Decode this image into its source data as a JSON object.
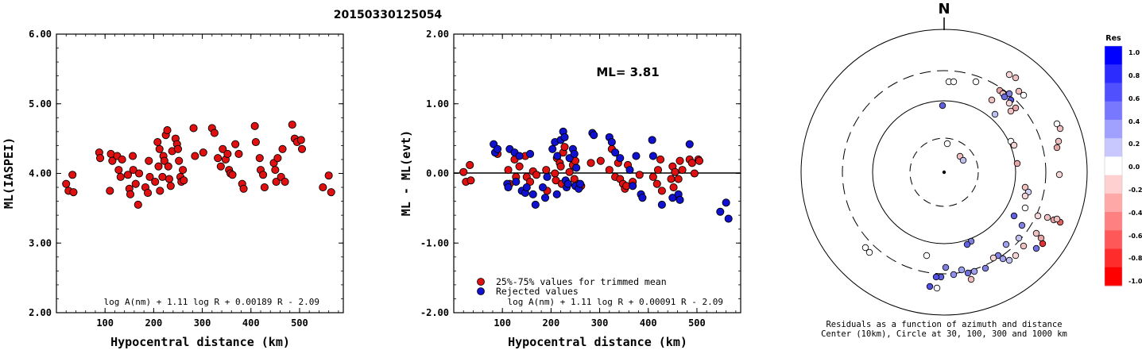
{
  "event_id": "20150330125054",
  "chart_data": [
    {
      "type": "scatter",
      "xlabel": "Hypocentral distance (km)",
      "ylabel": "ML(IASPEI)",
      "xlim": [
        0,
        590
      ],
      "ylim": [
        2.0,
        6.0
      ],
      "x_ticks": [
        "100",
        "200",
        "300",
        "400",
        "500"
      ],
      "y_ticks": [
        "2.00",
        "3.00",
        "4.00",
        "5.00",
        "6.00"
      ],
      "formula": "log A(nm) + 1.11 log R + 0.00189 R - 2.09",
      "series": [
        {
          "color": "#e01010",
          "points": [
            [
              20,
              3.85
            ],
            [
              25,
              3.75
            ],
            [
              33,
              3.98
            ],
            [
              35,
              3.73
            ],
            [
              88,
              4.3
            ],
            [
              90,
              4.22
            ],
            [
              110,
              3.75
            ],
            [
              112,
              4.28
            ],
            [
              115,
              4.18
            ],
            [
              125,
              4.25
            ],
            [
              128,
              4.05
            ],
            [
              132,
              3.95
            ],
            [
              135,
              4.2
            ],
            [
              147,
              3.98
            ],
            [
              150,
              3.78
            ],
            [
              152,
              3.7
            ],
            [
              157,
              4.25
            ],
            [
              158,
              4.05
            ],
            [
              163,
              3.85
            ],
            [
              168,
              3.55
            ],
            [
              170,
              4.0
            ],
            [
              183,
              3.8
            ],
            [
              188,
              3.72
            ],
            [
              190,
              4.18
            ],
            [
              192,
              3.95
            ],
            [
              203,
              3.88
            ],
            [
              208,
              4.45
            ],
            [
              210,
              4.1
            ],
            [
              212,
              4.35
            ],
            [
              213,
              3.75
            ],
            [
              218,
              3.95
            ],
            [
              220,
              4.25
            ],
            [
              222,
              4.18
            ],
            [
              225,
              4.55
            ],
            [
              228,
              4.62
            ],
            [
              230,
              4.1
            ],
            [
              232,
              3.92
            ],
            [
              235,
              3.82
            ],
            [
              238,
              4.32
            ],
            [
              245,
              4.5
            ],
            [
              248,
              4.42
            ],
            [
              250,
              4.35
            ],
            [
              252,
              4.18
            ],
            [
              255,
              3.95
            ],
            [
              257,
              3.88
            ],
            [
              260,
              4.05
            ],
            [
              262,
              3.9
            ],
            [
              282,
              4.65
            ],
            [
              285,
              4.25
            ],
            [
              302,
              4.3
            ],
            [
              320,
              4.65
            ],
            [
              325,
              4.58
            ],
            [
              332,
              4.22
            ],
            [
              338,
              4.1
            ],
            [
              342,
              4.35
            ],
            [
              348,
              4.2
            ],
            [
              352,
              4.28
            ],
            [
              355,
              4.05
            ],
            [
              358,
              4.0
            ],
            [
              362,
              3.98
            ],
            [
              368,
              4.42
            ],
            [
              375,
              4.28
            ],
            [
              382,
              3.85
            ],
            [
              385,
              3.78
            ],
            [
              408,
              4.68
            ],
            [
              410,
              4.45
            ],
            [
              418,
              4.22
            ],
            [
              420,
              4.05
            ],
            [
              425,
              3.98
            ],
            [
              428,
              3.8
            ],
            [
              447,
              4.15
            ],
            [
              450,
              4.05
            ],
            [
              452,
              3.88
            ],
            [
              455,
              4.22
            ],
            [
              462,
              3.95
            ],
            [
              465,
              4.35
            ],
            [
              470,
              3.88
            ],
            [
              485,
              4.7
            ],
            [
              490,
              4.5
            ],
            [
              495,
              4.45
            ],
            [
              503,
              4.48
            ],
            [
              505,
              4.35
            ],
            [
              548,
              3.8
            ],
            [
              560,
              3.97
            ],
            [
              565,
              3.73
            ]
          ]
        }
      ]
    },
    {
      "type": "scatter",
      "xlabel": "Hypocentral distance (km)",
      "ylabel": "ML - ML(evt)",
      "xlim": [
        0,
        590
      ],
      "ylim": [
        -2.0,
        2.0
      ],
      "x_ticks": [
        "100",
        "200",
        "300",
        "400",
        "500"
      ],
      "y_ticks": [
        "-2.00",
        "-1.00",
        "0.00",
        "1.00",
        "2.00"
      ],
      "annotation": "ML= 3.81",
      "formula": "log A(nm) + 1.11 log R + 0.00091 R - 2.09",
      "series": [
        {
          "name": "25%-75% values for trimmed mean",
          "color": "#e01010",
          "points": [
            [
              20,
              0.02
            ],
            [
              25,
              -0.12
            ],
            [
              33,
              0.12
            ],
            [
              35,
              -0.1
            ],
            [
              90,
              0.28
            ],
            [
              112,
              0.05
            ],
            [
              115,
              -0.15
            ],
            [
              125,
              0.2
            ],
            [
              128,
              -0.05
            ],
            [
              135,
              0.1
            ],
            [
              147,
              0.25
            ],
            [
              150,
              -0.05
            ],
            [
              157,
              -0.12
            ],
            [
              163,
              0.03
            ],
            [
              170,
              -0.02
            ],
            [
              190,
              0.05
            ],
            [
              192,
              -0.25
            ],
            [
              208,
              0.0
            ],
            [
              210,
              -0.1
            ],
            [
              212,
              0.22
            ],
            [
              218,
              0.15
            ],
            [
              220,
              0.1
            ],
            [
              222,
              -0.15
            ],
            [
              225,
              0.3
            ],
            [
              228,
              0.38
            ],
            [
              238,
              0.02
            ],
            [
              245,
              0.12
            ],
            [
              248,
              -0.08
            ],
            [
              250,
              0.18
            ],
            [
              255,
              -0.2
            ],
            [
              257,
              -0.15
            ],
            [
              262,
              -0.18
            ],
            [
              282,
              0.15
            ],
            [
              302,
              0.18
            ],
            [
              320,
              0.05
            ],
            [
              325,
              0.35
            ],
            [
              332,
              -0.05
            ],
            [
              338,
              0.15
            ],
            [
              342,
              -0.08
            ],
            [
              348,
              -0.15
            ],
            [
              352,
              -0.22
            ],
            [
              355,
              -0.18
            ],
            [
              358,
              0.12
            ],
            [
              368,
              -0.12
            ],
            [
              382,
              -0.02
            ],
            [
              410,
              -0.05
            ],
            [
              418,
              -0.15
            ],
            [
              420,
              0.05
            ],
            [
              425,
              0.2
            ],
            [
              428,
              -0.25
            ],
            [
              447,
              -0.08
            ],
            [
              450,
              0.1
            ],
            [
              452,
              -0.2
            ],
            [
              455,
              0.02
            ],
            [
              462,
              -0.08
            ],
            [
              465,
              0.18
            ],
            [
              470,
              0.05
            ],
            [
              485,
              0.2
            ],
            [
              490,
              0.15
            ],
            [
              495,
              0.0
            ],
            [
              503,
              0.2
            ],
            [
              505,
              0.18
            ]
          ]
        },
        {
          "name": "Rejected values",
          "color": "#1010d0",
          "points": [
            [
              82,
              0.42
            ],
            [
              85,
              0.3
            ],
            [
              90,
              0.35
            ],
            [
              110,
              -0.15
            ],
            [
              112,
              -0.2
            ],
            [
              115,
              0.35
            ],
            [
              125,
              0.3
            ],
            [
              128,
              -0.12
            ],
            [
              135,
              0.25
            ],
            [
              140,
              -0.25
            ],
            [
              147,
              -0.28
            ],
            [
              150,
              -0.2
            ],
            [
              157,
              0.28
            ],
            [
              163,
              -0.3
            ],
            [
              168,
              -0.45
            ],
            [
              183,
              -0.2
            ],
            [
              188,
              -0.35
            ],
            [
              192,
              -0.05
            ],
            [
              203,
              0.35
            ],
            [
              208,
              0.45
            ],
            [
              212,
              -0.3
            ],
            [
              213,
              0.25
            ],
            [
              220,
              0.48
            ],
            [
              225,
              0.6
            ],
            [
              228,
              0.52
            ],
            [
              230,
              -0.1
            ],
            [
              232,
              -0.2
            ],
            [
              235,
              -0.15
            ],
            [
              238,
              0.22
            ],
            [
              245,
              0.35
            ],
            [
              248,
              0.28
            ],
            [
              250,
              -0.18
            ],
            [
              252,
              0.08
            ],
            [
              257,
              -0.22
            ],
            [
              260,
              -0.15
            ],
            [
              285,
              0.58
            ],
            [
              288,
              0.55
            ],
            [
              320,
              0.52
            ],
            [
              325,
              0.45
            ],
            [
              332,
              0.3
            ],
            [
              342,
              0.22
            ],
            [
              362,
              0.05
            ],
            [
              368,
              -0.18
            ],
            [
              375,
              0.25
            ],
            [
              385,
              -0.3
            ],
            [
              388,
              -0.35
            ],
            [
              408,
              0.48
            ],
            [
              410,
              0.25
            ],
            [
              428,
              -0.45
            ],
            [
              450,
              -0.35
            ],
            [
              462,
              -0.3
            ],
            [
              465,
              -0.38
            ],
            [
              485,
              0.42
            ],
            [
              548,
              -0.55
            ],
            [
              560,
              -0.42
            ],
            [
              565,
              -0.65
            ]
          ]
        }
      ]
    }
  ],
  "polar": {
    "north_label": "N",
    "caption_line1": "Residuals as a function of azimuth and distance",
    "caption_line2": "Center (10km), Circle at 30, 100, 300 and 1000 km",
    "colorbar_title": "Res",
    "colorbar_labels": [
      "1.0",
      "0.8",
      "0.6",
      "0.4",
      "0.2",
      "0.0",
      "-0.2",
      "-0.4",
      "-0.6",
      "-0.8",
      "-1.0"
    ],
    "stations": [
      [
        1194,
        103,
        "#ffffff"
      ],
      [
        1200,
        103,
        "#ffffff"
      ],
      [
        1228,
        103,
        "#ffffff"
      ],
      [
        1270,
        94,
        "#f5d5d5"
      ],
      [
        1278,
        98,
        "#f0c0c0"
      ],
      [
        1258,
        114,
        "#e8a5a5"
      ],
      [
        1262,
        118,
        "#f0c0c0"
      ],
      [
        1270,
        118,
        "#8080e0"
      ],
      [
        1264,
        122,
        "#6a6ae6"
      ],
      [
        1272,
        126,
        "#5050e8"
      ],
      [
        1282,
        115,
        "#f0c0c0"
      ],
      [
        1288,
        120,
        "#ffffff"
      ],
      [
        1248,
        126,
        "#f0c0c0"
      ],
      [
        1270,
        130,
        "#f5d5d5"
      ],
      [
        1278,
        136,
        "#e8a5a5"
      ],
      [
        1272,
        140,
        "#f0c0c0"
      ],
      [
        1252,
        144,
        "#c0c0f0"
      ],
      [
        1186,
        133,
        "#6060e0"
      ],
      [
        1330,
        156,
        "#ffffff"
      ],
      [
        1334,
        162,
        "#f0c0c0"
      ],
      [
        1192,
        181,
        "#ffffff"
      ],
      [
        1272,
        178,
        "#ffffff"
      ],
      [
        1276,
        183,
        "#f5d5d5"
      ],
      [
        1332,
        178,
        "#f0c0c0"
      ],
      [
        1330,
        186,
        "#e8a5a5"
      ],
      [
        1208,
        197,
        "#f0c0c0"
      ],
      [
        1212,
        202,
        "#c0c0f0"
      ],
      [
        1280,
        206,
        "#e8a5a5"
      ],
      [
        1333,
        220,
        "#f5d5d5"
      ],
      [
        1290,
        236,
        "#f0c0c0"
      ],
      [
        1294,
        242,
        "#d0d0f5"
      ],
      [
        1290,
        247,
        "#f5d5d5"
      ],
      [
        1290,
        262,
        "#ffffff"
      ],
      [
        1276,
        272,
        "#6060e0"
      ],
      [
        1306,
        272,
        "#f5d5d5"
      ],
      [
        1318,
        274,
        "#f0c0c0"
      ],
      [
        1326,
        277,
        "#e8a5a5"
      ],
      [
        1334,
        280,
        "#e06060"
      ],
      [
        1330,
        276,
        "#f0c0c0"
      ],
      [
        1286,
        284,
        "#8080e0"
      ],
      [
        1304,
        294,
        "#f0c0c0"
      ],
      [
        1310,
        300,
        "#e8a5a5"
      ],
      [
        1312,
        307,
        "#e03030"
      ],
      [
        1304,
        313,
        "#7070e0"
      ],
      [
        1282,
        300,
        "#c0c0f0"
      ],
      [
        1288,
        310,
        "#f0c0c0"
      ],
      [
        1266,
        308,
        "#a0a0f0"
      ],
      [
        1278,
        322,
        "#f5d5d5"
      ],
      [
        1270,
        328,
        "#c0c0f0"
      ],
      [
        1256,
        322,
        "#8080e0"
      ],
      [
        1250,
        325,
        "#f5d5d5"
      ],
      [
        1262,
        326,
        "#a0a0f0"
      ],
      [
        1222,
        304,
        "#8080e0"
      ],
      [
        1217,
        308,
        "#6060e0"
      ],
      [
        1240,
        338,
        "#8080e0"
      ],
      [
        1226,
        342,
        "#a0a0f0"
      ],
      [
        1218,
        344,
        "#7070e0"
      ],
      [
        1210,
        340,
        "#a0a0f0"
      ],
      [
        1200,
        346,
        "#9090f0"
      ],
      [
        1190,
        337,
        "#8080e0"
      ],
      [
        1184,
        349,
        "#6060e0"
      ],
      [
        1178,
        349,
        "#5050e8"
      ],
      [
        1170,
        361,
        "#5050e8"
      ],
      [
        1179,
        363,
        "#ffffff"
      ],
      [
        1089,
        312,
        "#ffffff"
      ],
      [
        1094,
        318,
        "#ffffff"
      ],
      [
        1166,
        322,
        "#ffffff"
      ],
      [
        1222,
        352,
        "#f0c0c0"
      ]
    ]
  }
}
